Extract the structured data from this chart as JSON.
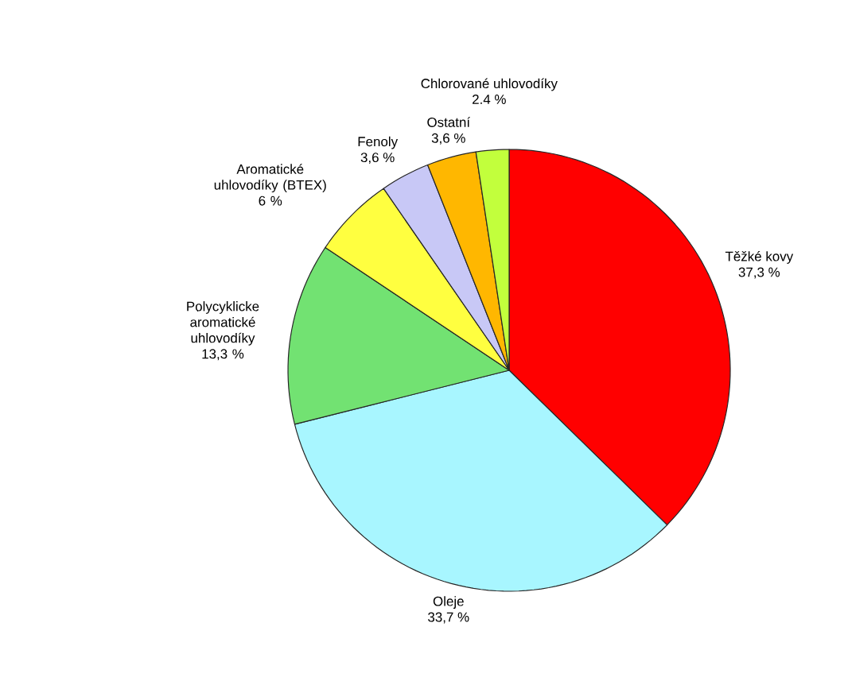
{
  "chart_data": {
    "type": "pie",
    "categories": [
      "Těžké kovy",
      "Oleje",
      "Polycyklicke aromatické uhlovodíky",
      "Aromatické uhlovodíky (BTEX)",
      "Fenoly",
      "Ostatní",
      "Chlorované uhlovodíky"
    ],
    "values": [
      37.3,
      33.7,
      13.3,
      6,
      3.6,
      3.6,
      2.4
    ],
    "value_labels": [
      "37,3 %",
      "33,7 %",
      "13,3 %",
      "6 %",
      "3,6 %",
      "3,6 %",
      "2.4 %"
    ],
    "colors": [
      "#ff0000",
      "#a8f6ff",
      "#72e272",
      "#ffff40",
      "#c8c8f6",
      "#ffb700",
      "#c2ff3c"
    ]
  }
}
